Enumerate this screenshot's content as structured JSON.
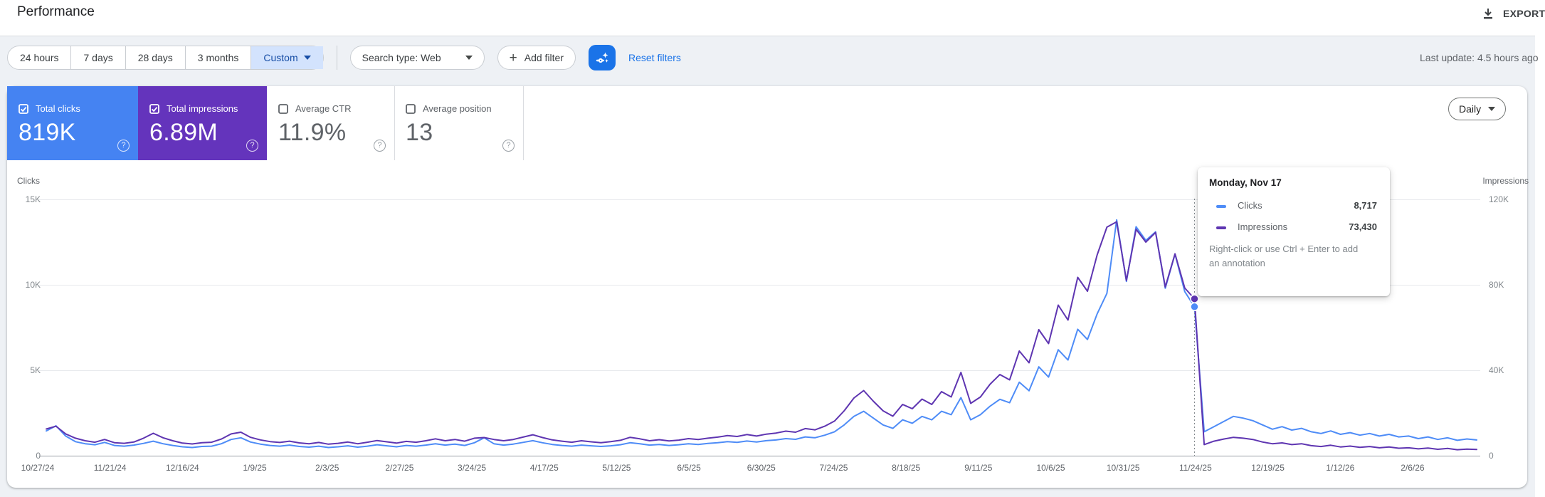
{
  "header": {
    "title": "Performance",
    "export_label": "EXPORT"
  },
  "filters": {
    "date_ranges": [
      "24 hours",
      "7 days",
      "28 days",
      "3 months",
      "Custom"
    ],
    "active_range": "Custom",
    "search_type_label": "Search type: Web",
    "add_filter_label": "Add filter",
    "reset_label": "Reset filters",
    "last_update": "Last update: 4.5 hours ago"
  },
  "metrics": [
    {
      "label": "Total clicks",
      "value": "819K",
      "selected": true,
      "color": "#4583f2"
    },
    {
      "label": "Total impressions",
      "value": "6.89M",
      "selected": true,
      "color": "#6434bc"
    },
    {
      "label": "Average CTR",
      "value": "11.9%",
      "selected": false,
      "color": ""
    },
    {
      "label": "Average position",
      "value": "13",
      "selected": false,
      "color": ""
    }
  ],
  "granularity": {
    "label": "Daily"
  },
  "tooltip": {
    "title": "Monday, Nov 17",
    "rows": [
      {
        "label": "Clicks",
        "value": "8,717",
        "color": "#4e8cf7"
      },
      {
        "label": "Impressions",
        "value": "73,430",
        "color": "#5e35b1"
      }
    ],
    "hint": "Right-click or use Ctrl + Enter to add an annotation"
  },
  "chart_data": {
    "type": "line",
    "x_tick_labels": [
      "10/27/24",
      "11/21/24",
      "12/16/24",
      "1/9/25",
      "2/3/25",
      "2/27/25",
      "3/24/25",
      "4/17/25",
      "5/12/25",
      "6/5/25",
      "6/30/25",
      "7/24/25",
      "8/18/25",
      "9/11/25",
      "10/6/25",
      "10/31/25",
      "11/24/25",
      "12/19/25",
      "1/12/26",
      "2/6/26"
    ],
    "left_axis": {
      "title": "Clicks",
      "ticks": [
        "15K",
        "10K",
        "5K",
        "0"
      ],
      "max": 15000
    },
    "right_axis": {
      "title": "Impressions",
      "ticks": [
        "120K",
        "80K",
        "40K",
        "0"
      ],
      "max": 120000
    },
    "grid": true,
    "legend": "tooltip-only",
    "estimated_sampling": true,
    "hover_index": 118,
    "series": [
      {
        "name": "Clicks",
        "axis": "left",
        "color": "#4e8cf7",
        "values": [
          1450,
          1750,
          1150,
          820,
          700,
          640,
          780,
          600,
          560,
          620,
          720,
          850,
          700,
          600,
          520,
          480,
          540,
          560,
          700,
          950,
          1050,
          800,
          680,
          600,
          560,
          620,
          540,
          500,
          560,
          480,
          520,
          580,
          500,
          560,
          640,
          580,
          520,
          600,
          560,
          620,
          700,
          620,
          680,
          600,
          760,
          1050,
          700,
          620,
          680,
          780,
          880,
          760,
          660,
          600,
          560,
          620,
          580,
          540,
          580,
          640,
          760,
          700,
          620,
          660,
          600,
          640,
          700,
          660,
          720,
          760,
          820,
          780,
          860,
          800,
          880,
          920,
          1000,
          960,
          1100,
          1050,
          1200,
          1400,
          1800,
          2300,
          2600,
          2200,
          1800,
          1600,
          2100,
          1900,
          2300,
          2100,
          2600,
          2400,
          3400,
          2100,
          2400,
          2900,
          3300,
          3100,
          4300,
          3800,
          5200,
          4600,
          6200,
          5600,
          7400,
          6800,
          8300,
          9500,
          13800,
          10200,
          13400,
          12600,
          13100,
          9800,
          11800,
          9600,
          8717,
          1400,
          1700,
          2000,
          2300,
          2200,
          2050,
          1800,
          1550,
          1700,
          1500,
          1600,
          1400,
          1300,
          1450,
          1250,
          1350,
          1200,
          1300,
          1150,
          1250,
          1100,
          1150,
          1000,
          1100,
          950,
          1050,
          900,
          980,
          920
        ]
      },
      {
        "name": "Impressions",
        "axis": "right",
        "color": "#5e35b1",
        "values": [
          12500,
          13800,
          10200,
          8200,
          7000,
          6300,
          7600,
          6100,
          5800,
          6400,
          8200,
          10500,
          8400,
          7000,
          5900,
          5500,
          6100,
          6300,
          7800,
          10200,
          11000,
          8600,
          7400,
          6600,
          6200,
          6800,
          6000,
          5600,
          6200,
          5400,
          5800,
          6400,
          5600,
          6300,
          7100,
          6500,
          5900,
          6700,
          6300,
          7000,
          7900,
          7000,
          7600,
          6800,
          8200,
          8500,
          7600,
          7000,
          7600,
          8700,
          9800,
          8500,
          7400,
          6800,
          6300,
          7000,
          6500,
          6100,
          6600,
          7200,
          8600,
          7900,
          7000,
          7500,
          6900,
          7300,
          8000,
          7600,
          8200,
          8700,
          9400,
          9000,
          9900,
          9200,
          10100,
          10600,
          11500,
          11000,
          12700,
          12100,
          13800,
          16200,
          21000,
          27000,
          30500,
          25500,
          21000,
          18500,
          24000,
          22000,
          26500,
          24000,
          30000,
          27500,
          39000,
          24500,
          27500,
          33500,
          38000,
          35500,
          49000,
          43500,
          59000,
          52500,
          70500,
          63500,
          83500,
          77000,
          94000,
          107000,
          109500,
          82000,
          106000,
          100000,
          104500,
          79000,
          94500,
          78500,
          73430,
          5200,
          6800,
          7800,
          8600,
          8200,
          7600,
          6400,
          5600,
          6000,
          5200,
          5600,
          4700,
          4300,
          4900,
          4100,
          4500,
          3900,
          4300,
          3700,
          4100,
          3500,
          3700,
          3200,
          3600,
          3000,
          3400,
          2800,
          3100,
          2900
        ]
      }
    ]
  }
}
